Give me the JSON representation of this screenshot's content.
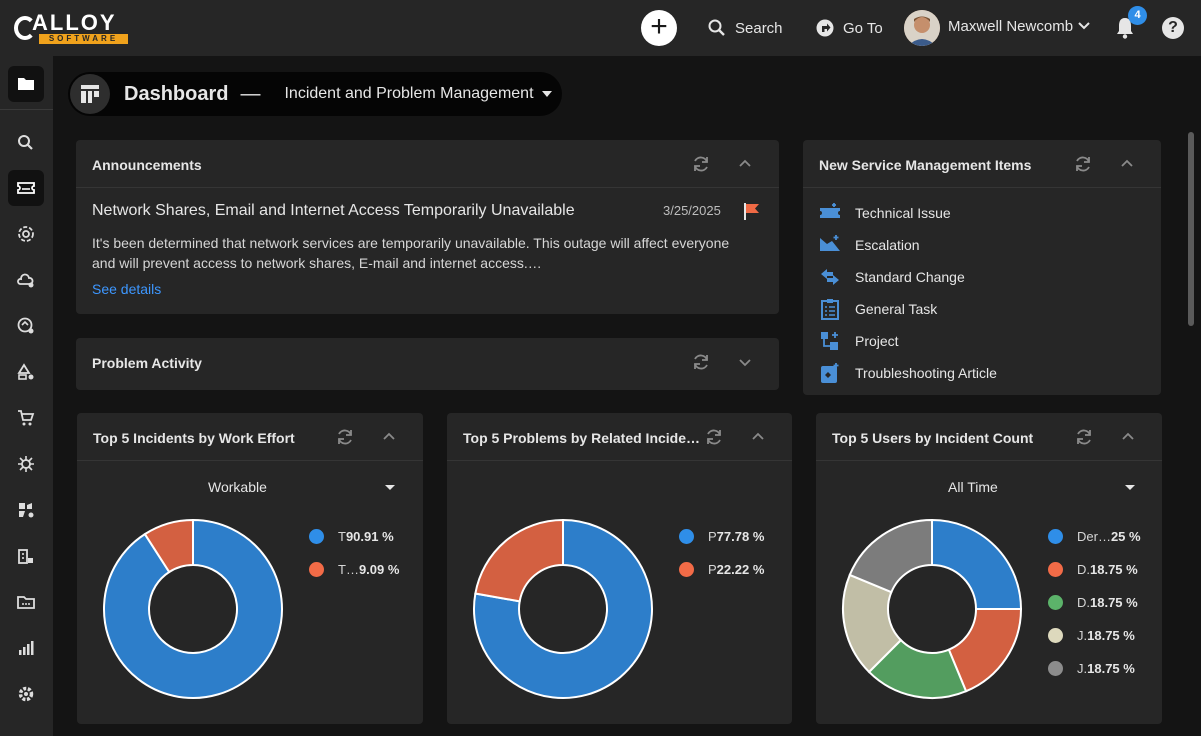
{
  "brand": {
    "name": "ALLOY",
    "tagline": "SOFTWARE"
  },
  "topbar": {
    "search_label": "Search",
    "goto_label": "Go To",
    "user_name": "Maxwell Newcomb",
    "notification_count": "4",
    "help_label": "?"
  },
  "sidebar": {
    "items": [
      "folder-icon",
      "search-icon",
      "ticket-icon",
      "service-gear-icon",
      "cloud-gear-icon",
      "refresh-gear-icon",
      "shapes-gear-icon",
      "cart-icon",
      "bug-gear-icon",
      "puzzle-gear-icon",
      "building-gear-icon",
      "folder-dots-icon",
      "bar-chart-icon",
      "settings-icon"
    ]
  },
  "dashboard": {
    "title": "Dashboard",
    "separator": "—",
    "view_name": "Incident and Problem Management"
  },
  "announcements": {
    "title": "Announcements",
    "item_title": "Network Shares, Email and Internet Access Temporarily Unavailable",
    "item_date": "3/25/2025",
    "item_body": "It's been determined that network services are temporarily unavailable. This outage will affect everyone and will prevent access to network shares, E-mail and internet access.…",
    "link_label": "See details",
    "flag_color": "#f06a45"
  },
  "problem_activity": {
    "title": "Problem Activity"
  },
  "new_items": {
    "title": "New Service Management Items",
    "items": [
      "Technical Issue",
      "Escalation",
      "Standard Change",
      "General Task",
      "Project",
      "Troubleshooting Article"
    ],
    "icon_color": "#4a8fd6"
  },
  "widgets": [
    {
      "title": "Top 5 Incidents by Work Effort",
      "filter": "Workable",
      "legend": [
        {
          "label": "T",
          "value": "90.91 %",
          "color": "#2f8ee8"
        },
        {
          "label": "T…",
          "value": "9.09 %",
          "color": "#f26b47"
        }
      ]
    },
    {
      "title": "Top 5 Problems by Related Incide…",
      "filter": "",
      "legend": [
        {
          "label": "P",
          "value": "77.78 %",
          "color": "#2f8ee8"
        },
        {
          "label": "P",
          "value": "22.22 %",
          "color": "#f26b47"
        }
      ]
    },
    {
      "title": "Top 5 Users by Incident Count",
      "filter": "All Time",
      "legend": [
        {
          "label": "Der…",
          "value": "25 %",
          "color": "#2f8ee8"
        },
        {
          "label": "D.",
          "value": "18.75 %",
          "color": "#f26b47"
        },
        {
          "label": "D.",
          "value": "18.75 %",
          "color": "#5cb36a"
        },
        {
          "label": "J.",
          "value": "18.75 %",
          "color": "#ddd9bd"
        },
        {
          "label": "J.",
          "value": "18.75 %",
          "color": "#8c8c8c"
        }
      ]
    }
  ],
  "chart_data": [
    {
      "type": "pie",
      "categories": [
        "T",
        "T…"
      ],
      "values": [
        90.91,
        9.09
      ],
      "colors": [
        "#2f8ee8",
        "#f26b47"
      ]
    },
    {
      "type": "pie",
      "categories": [
        "P",
        "P"
      ],
      "values": [
        77.78,
        22.22
      ],
      "colors": [
        "#2f8ee8",
        "#f26b47"
      ]
    },
    {
      "type": "pie",
      "categories": [
        "Der…",
        "D.",
        "D.",
        "J.",
        "J."
      ],
      "values": [
        25,
        18.75,
        18.75,
        18.75,
        18.75
      ],
      "colors": [
        "#2f8ee8",
        "#f26b47",
        "#5cb36a",
        "#ddd9bd",
        "#8c8c8c"
      ]
    }
  ]
}
